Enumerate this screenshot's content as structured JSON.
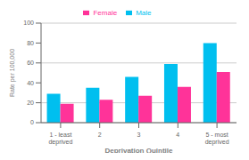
{
  "chart_data": {
    "type": "bar",
    "categories": [
      "1 - least deprived",
      "2",
      "3",
      "4",
      "5 - most deprived"
    ],
    "series": [
      {
        "name": "Male",
        "color": "#00BFEF",
        "values": [
          29,
          35,
          46,
          59,
          80
        ]
      },
      {
        "name": "Female",
        "color": "#FF3399",
        "values": [
          19,
          23,
          27,
          36,
          51
        ]
      }
    ],
    "xlabel": "Deprivation Quintile",
    "ylabel": "Rate per 100,000",
    "ylim": [
      0,
      100
    ],
    "yticks": [
      0,
      20,
      40,
      60,
      80,
      100
    ],
    "grid": true,
    "legend": "top"
  }
}
